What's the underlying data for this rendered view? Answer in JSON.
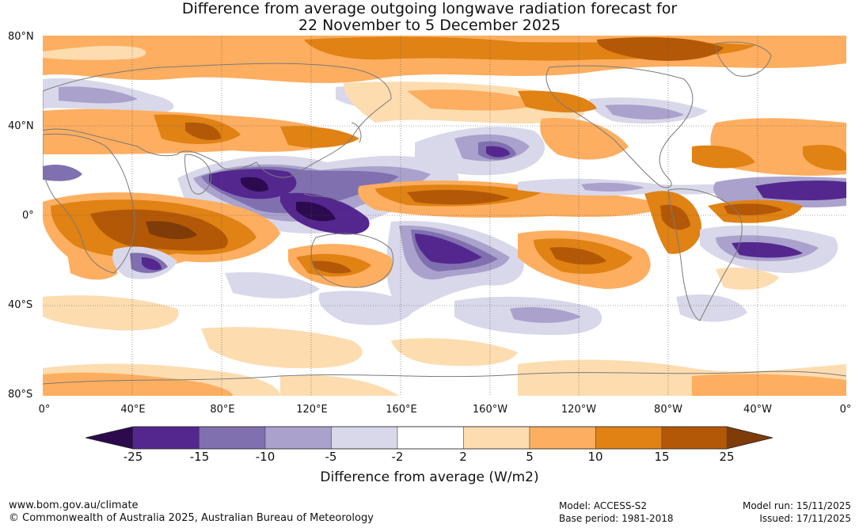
{
  "title": {
    "line1": "Difference from average outgoing longwave radiation forecast for",
    "line2": "22 November to 5 December 2025"
  },
  "map": {
    "lat_labels": [
      "80°N",
      "40°N",
      "0°",
      "40°S",
      "80°S"
    ],
    "lon_labels": [
      "0°",
      "40°E",
      "80°E",
      "120°E",
      "160°E",
      "160°W",
      "120°W",
      "80°W",
      "40°W",
      "0°"
    ],
    "colors": {
      "ocean_white": "#ffffff",
      "coast": "#7a7a7a",
      "grid": "#555555"
    }
  },
  "colorbar": {
    "title": "Difference from average (W/m2)",
    "tick_labels": [
      "-25",
      "-15",
      "-10",
      "-5",
      "-2",
      "2",
      "5",
      "10",
      "15",
      "25"
    ],
    "colors": [
      "#2d0a4e",
      "#54278f",
      "#8070b0",
      "#aaa2cc",
      "#d9d8ea",
      "#ffffff",
      "#fddcb0",
      "#fdae60",
      "#e08214",
      "#b35806",
      "#7f3b08"
    ]
  },
  "footer": {
    "url": "www.bom.gov.au/climate",
    "copyright": "© Commonwealth of Australia 2025, Australian Bureau of Meteorology",
    "model": "Model: ACCESS-S2",
    "base_period": "Base period: 1981-2018",
    "model_run": "Model run: 15/11/2025",
    "issued": "Issued: 17/11/2025"
  }
}
